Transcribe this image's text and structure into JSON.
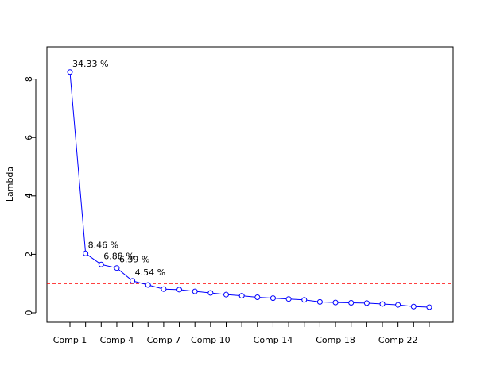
{
  "chart_data": {
    "type": "line",
    "ylabel": "Lambda",
    "xlabel": "",
    "title": "",
    "ylim": [
      -0.3,
      9.1
    ],
    "y_ticks": [
      0,
      2,
      4,
      6,
      8
    ],
    "x_tick_labels": [
      {
        "index": 1,
        "label": "Comp 1"
      },
      {
        "index": 4,
        "label": "Comp 4"
      },
      {
        "index": 7,
        "label": "Comp 7"
      },
      {
        "index": 10,
        "label": "Comp 10"
      },
      {
        "index": 14,
        "label": "Comp 14"
      },
      {
        "index": 18,
        "label": "Comp 18"
      },
      {
        "index": 22,
        "label": "Comp 22"
      }
    ],
    "n_components": 24,
    "values": [
      8.24,
      2.03,
      1.65,
      1.53,
      1.09,
      0.95,
      0.81,
      0.79,
      0.73,
      0.68,
      0.62,
      0.58,
      0.53,
      0.5,
      0.47,
      0.44,
      0.37,
      0.35,
      0.34,
      0.33,
      0.3,
      0.27,
      0.21,
      0.19
    ],
    "annotations": [
      {
        "index": 1,
        "text": "34.33 %"
      },
      {
        "index": 2,
        "text": "8.46 %"
      },
      {
        "index": 3,
        "text": "6.88 %"
      },
      {
        "index": 4,
        "text": "6.39 %"
      },
      {
        "index": 5,
        "text": "4.54 %"
      }
    ],
    "reference_line": {
      "y": 1,
      "color": "#ff0000"
    },
    "line_color": "#0000ff",
    "point_color": "#0000ff",
    "grid": false
  }
}
